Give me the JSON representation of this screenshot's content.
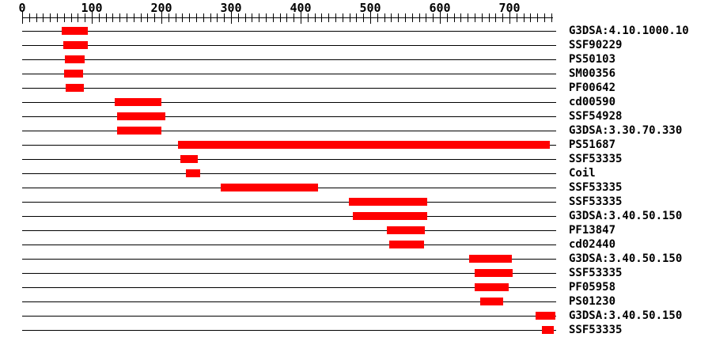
{
  "chart_data": {
    "type": "bar",
    "variant": "horizontal-range (protein domain architecture)",
    "title": "",
    "legend": "none",
    "grid": false,
    "axis": {
      "position": "top",
      "min": 0,
      "max": 763,
      "major_tick_interval": 100,
      "minor_tick_interval": 10,
      "last_minor_tick": 760,
      "major_tick_labels": [
        "0",
        "100",
        "200",
        "300",
        "400",
        "500",
        "600",
        "700"
      ],
      "major_tick_values": [
        0,
        100,
        200,
        300,
        400,
        500,
        600,
        700
      ]
    },
    "features": [
      {
        "label": "G3DSA:4.10.1000.10",
        "start": 57,
        "end": 94
      },
      {
        "label": "SSF90229",
        "start": 59,
        "end": 94
      },
      {
        "label": "PS50103",
        "start": 61,
        "end": 90
      },
      {
        "label": "SM00356",
        "start": 60,
        "end": 88
      },
      {
        "label": "PF00642",
        "start": 62,
        "end": 89
      },
      {
        "label": "cd00590",
        "start": 133,
        "end": 200
      },
      {
        "label": "SSF54928",
        "start": 136,
        "end": 206
      },
      {
        "label": "G3DSA:3.30.70.330",
        "start": 136,
        "end": 200
      },
      {
        "label": "PS51687",
        "start": 224,
        "end": 758
      },
      {
        "label": "SSF53335",
        "start": 227,
        "end": 252
      },
      {
        "label": "Coil",
        "start": 235,
        "end": 256
      },
      {
        "label": "SSF53335",
        "start": 285,
        "end": 425
      },
      {
        "label": "SSF53335",
        "start": 469,
        "end": 582
      },
      {
        "label": "G3DSA:3.40.50.150",
        "start": 475,
        "end": 582
      },
      {
        "label": "PF13847",
        "start": 524,
        "end": 578
      },
      {
        "label": "cd02440",
        "start": 527,
        "end": 577
      },
      {
        "label": "G3DSA:3.40.50.150",
        "start": 642,
        "end": 703
      },
      {
        "label": "SSF53335",
        "start": 650,
        "end": 705
      },
      {
        "label": "PF05958",
        "start": 650,
        "end": 699
      },
      {
        "label": "PS01230",
        "start": 658,
        "end": 691
      },
      {
        "label": "G3DSA:3.40.50.150",
        "start": 737,
        "end": 766
      },
      {
        "label": "SSF53335",
        "start": 746,
        "end": 763
      }
    ],
    "colors": {
      "bar": "#ff0000",
      "axis": "#000000",
      "sequence_line": "#000000",
      "text": "#000000",
      "background": "#ffffff"
    }
  }
}
